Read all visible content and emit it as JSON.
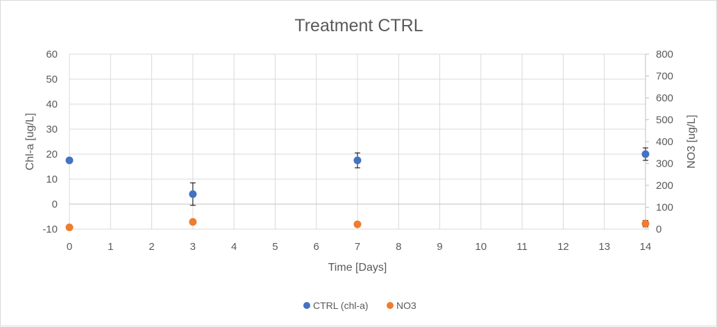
{
  "chart_data": {
    "type": "scatter",
    "title": "Treatment CTRL",
    "xlabel": "Time [Days]",
    "ylabel": "Chl-a [ug/L]",
    "y2label": "NO3 [ug/L]",
    "xlim": [
      0,
      14
    ],
    "ylim": [
      -10,
      60
    ],
    "y2lim": [
      0,
      800
    ],
    "x_ticks": [
      0,
      1,
      2,
      3,
      4,
      5,
      6,
      7,
      8,
      9,
      10,
      11,
      12,
      13,
      14
    ],
    "y_ticks": [
      -10,
      0,
      10,
      20,
      30,
      40,
      50,
      60
    ],
    "y2_ticks": [
      0,
      100,
      200,
      300,
      400,
      500,
      600,
      700,
      800
    ],
    "grid": true,
    "legend_position": "bottom",
    "series": [
      {
        "name": "CTRL (chl-a)",
        "axis": "left",
        "color": "#4472c4",
        "x": [
          0,
          3,
          7,
          14
        ],
        "y": [
          17.5,
          4,
          17.5,
          20
        ],
        "error": [
          0,
          4.5,
          3,
          2.5
        ]
      },
      {
        "name": "NO3",
        "axis": "right",
        "color": "#ed7d31",
        "x": [
          0,
          3,
          7,
          14
        ],
        "y": [
          8,
          33,
          22,
          25
        ],
        "error": [
          0,
          0,
          0,
          15
        ]
      }
    ]
  }
}
